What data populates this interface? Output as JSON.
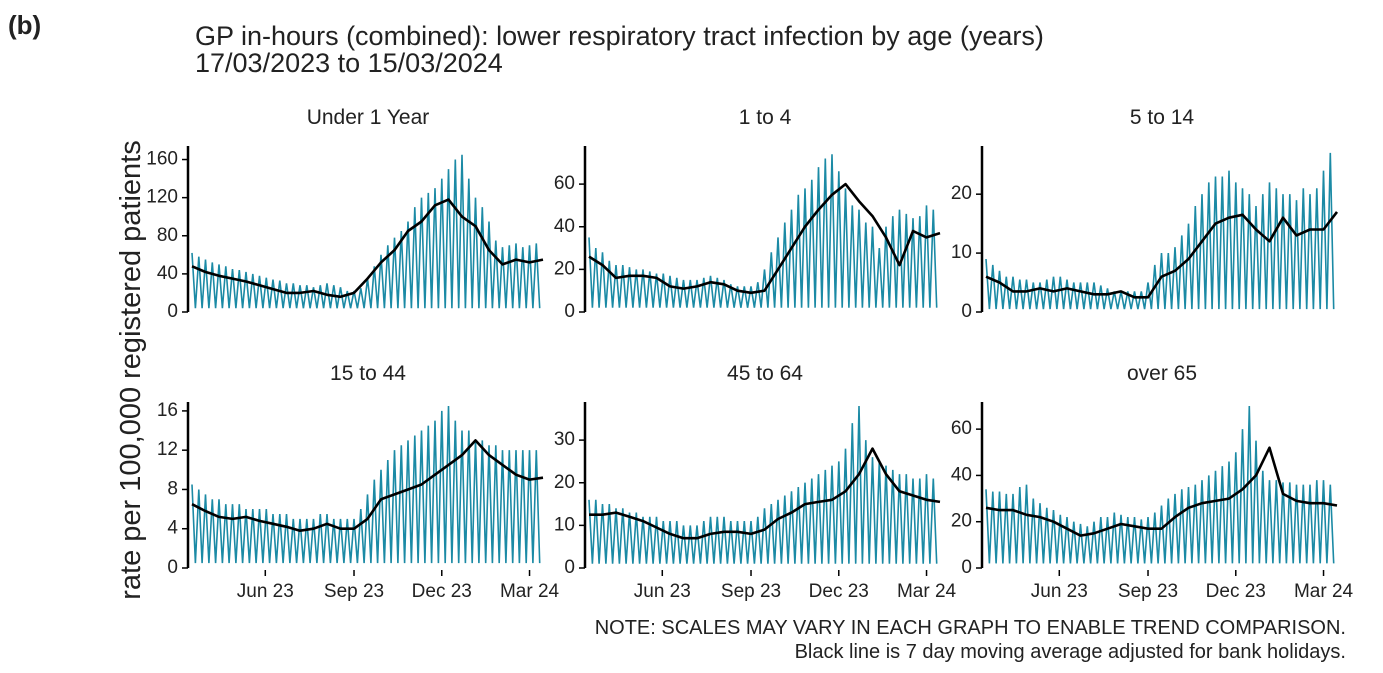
{
  "panel_label": "(b)",
  "title": "GP in-hours (combined): lower respiratory tract infection by age (years)",
  "subtitle": "17/03/2023 to 15/03/2024",
  "ylabel": "rate per 100,000 registered patients",
  "notes": [
    "NOTE: SCALES MAY VARY IN EACH GRAPH TO ENABLE TREND COMPARISON.",
    "Black line is 7 day moving average adjusted for bank holidays."
  ],
  "chart_data": {
    "type": "line",
    "color": "#1b8aa5",
    "avg_color": "#000000",
    "xlim": [
      0,
      365
    ],
    "xticks": [
      {
        "value": 76,
        "label": "Jun 23"
      },
      {
        "value": 168,
        "label": "Sep 23"
      },
      {
        "value": 259,
        "label": "Dec 23"
      },
      {
        "value": 350,
        "label": "Mar 24"
      }
    ],
    "x": [
      0,
      3.5,
      7,
      10.5,
      14,
      17.5,
      21,
      24.5,
      28,
      31.5,
      35,
      38.5,
      42,
      45.5,
      49,
      52.5,
      56,
      59.5,
      63,
      66.5,
      70,
      73.5,
      77,
      80.5,
      84,
      87.5,
      91,
      94.5,
      98,
      101.5,
      105,
      108.5,
      112,
      115.5,
      119,
      122.5,
      126,
      129.5,
      133,
      136.5,
      140,
      143.5,
      147,
      150.5,
      154,
      157.5,
      161,
      164.5,
      168,
      171.5,
      175,
      178.5,
      182,
      185.5,
      189,
      192.5,
      196,
      199.5,
      203,
      206.5,
      210,
      213.5,
      217,
      220.5,
      224,
      227.5,
      231,
      234.5,
      238,
      241.5,
      245,
      248.5,
      252,
      255.5,
      259,
      262.5,
      266,
      269.5,
      273,
      276.5,
      280,
      283.5,
      287,
      290.5,
      294,
      297.5,
      301,
      304.5,
      308,
      311.5,
      315,
      318.5,
      322,
      325.5,
      329,
      332.5,
      336,
      339.5,
      343,
      346.5,
      350,
      353.5,
      357,
      360.5
    ],
    "x_avg": [
      0,
      14,
      28,
      42,
      56,
      70,
      84,
      98,
      112,
      126,
      140,
      154,
      168,
      182,
      196,
      210,
      224,
      238,
      252,
      266,
      280,
      294,
      308,
      322,
      336,
      350,
      364
    ],
    "panels": [
      {
        "title": "Under 1 Year",
        "ylim": [
          0,
          170
        ],
        "yticks": [
          0,
          40,
          80,
          120,
          160
        ],
        "values": [
          62,
          4,
          58,
          4,
          55,
          4,
          52,
          4,
          50,
          4,
          48,
          4,
          45,
          4,
          44,
          4,
          42,
          4,
          40,
          4,
          38,
          4,
          36,
          4,
          34,
          4,
          33,
          4,
          30,
          4,
          30,
          4,
          28,
          4,
          28,
          4,
          26,
          4,
          28,
          4,
          30,
          4,
          28,
          4,
          26,
          4,
          22,
          4,
          22,
          4,
          25,
          4,
          35,
          4,
          48,
          4,
          60,
          4,
          70,
          4,
          78,
          4,
          85,
          4,
          95,
          4,
          110,
          4,
          120,
          4,
          125,
          4,
          130,
          4,
          140,
          4,
          150,
          4,
          160,
          4,
          165,
          4,
          140,
          4,
          120,
          4,
          110,
          4,
          95,
          4,
          75,
          4,
          68,
          4,
          70,
          4,
          72,
          4,
          68,
          4,
          70,
          4,
          72,
          4
        ],
        "average": [
          48,
          42,
          38,
          35,
          32,
          28,
          24,
          20,
          20,
          22,
          18,
          16,
          20,
          35,
          52,
          65,
          85,
          95,
          112,
          118,
          100,
          90,
          65,
          50,
          55,
          52,
          55
        ]
      },
      {
        "title": "1 to 4",
        "ylim": [
          0,
          76
        ],
        "yticks": [
          0,
          20,
          40,
          60
        ],
        "values": [
          35,
          2,
          30,
          2,
          28,
          2,
          24,
          2,
          22,
          2,
          22,
          2,
          21,
          2,
          20,
          2,
          20,
          2,
          19,
          2,
          18,
          2,
          18,
          2,
          17,
          2,
          16,
          2,
          15,
          2,
          15,
          2,
          15,
          2,
          16,
          2,
          17,
          2,
          16,
          2,
          15,
          2,
          13,
          2,
          12,
          2,
          12,
          2,
          12,
          2,
          14,
          2,
          20,
          2,
          28,
          2,
          35,
          2,
          42,
          2,
          48,
          2,
          55,
          2,
          58,
          2,
          62,
          2,
          68,
          2,
          72,
          2,
          74,
          2,
          66,
          2,
          58,
          2,
          50,
          2,
          48,
          2,
          42,
          2,
          40,
          2,
          30,
          2,
          40,
          2,
          45,
          2,
          48,
          2,
          46,
          2,
          44,
          2,
          45,
          2,
          50,
          2,
          48,
          2
        ],
        "average": [
          26,
          22,
          16,
          17,
          17,
          16,
          12,
          11,
          12,
          14,
          13,
          10,
          9,
          10,
          20,
          30,
          40,
          48,
          55,
          60,
          52,
          45,
          35,
          22,
          38,
          35,
          37
        ]
      },
      {
        "title": "5 to 14",
        "ylim": [
          0,
          27.5
        ],
        "yticks": [
          0,
          10,
          20
        ],
        "values": [
          9,
          0.5,
          8,
          0.5,
          7,
          0.5,
          6,
          0.5,
          6,
          0.5,
          5.5,
          0.5,
          5.5,
          0.5,
          5,
          0.5,
          5,
          0.5,
          5.5,
          0.5,
          6,
          0.5,
          6,
          0.5,
          5.5,
          0.5,
          5,
          0.5,
          5,
          0.5,
          5,
          0.5,
          5,
          0.5,
          4.5,
          0.5,
          4,
          0.5,
          3.5,
          0.5,
          3.5,
          0.5,
          3.5,
          0.5,
          3.5,
          0.5,
          3.5,
          0.5,
          5,
          0.5,
          8,
          0.5,
          10,
          0.5,
          10,
          0.5,
          11,
          0.5,
          13,
          0.5,
          15,
          0.5,
          18,
          0.5,
          20,
          0.5,
          22,
          0.5,
          23,
          0.5,
          23,
          0.5,
          24,
          0.5,
          22,
          0.5,
          21,
          0.5,
          20,
          0.5,
          18,
          0.5,
          20,
          0.5,
          22,
          0.5,
          21,
          0.5,
          20,
          0.5,
          20,
          0.5,
          19,
          0.5,
          21,
          0.5,
          20,
          0.5,
          21,
          0.5,
          24,
          0.5,
          27,
          0.5
        ],
        "average": [
          6,
          5,
          3.5,
          3.5,
          4,
          3.5,
          4,
          3.5,
          3,
          3,
          3.5,
          2.5,
          2.5,
          6,
          7,
          9,
          12,
          15,
          16,
          16.5,
          14,
          12,
          16,
          13,
          14,
          14,
          17
        ]
      },
      {
        "title": "15 to 44",
        "ylim": [
          0,
          16.5
        ],
        "yticks": [
          0,
          4,
          8,
          12,
          16
        ],
        "values": [
          8.5,
          0.5,
          8,
          0.5,
          7.5,
          0.5,
          7,
          0.5,
          7,
          0.5,
          6.5,
          0.5,
          6.5,
          0.5,
          6.5,
          0.5,
          6,
          0.5,
          6,
          0.5,
          6,
          0.5,
          6,
          0.5,
          5.5,
          0.5,
          5.5,
          0.5,
          5.5,
          0.5,
          5,
          0.5,
          5,
          0.5,
          5,
          0.5,
          5,
          0.5,
          5.5,
          0.5,
          5.5,
          0.5,
          5,
          0.5,
          5,
          0.5,
          5,
          0.5,
          5,
          0.5,
          6,
          0.5,
          7.5,
          0.5,
          9,
          0.5,
          10,
          0.5,
          11,
          0.5,
          12,
          0.5,
          12.5,
          0.5,
          13,
          0.5,
          13.5,
          0.5,
          14,
          0.5,
          14.5,
          0.5,
          15,
          0.5,
          16,
          0.5,
          16.5,
          0.5,
          15,
          0.5,
          14,
          0.5,
          14,
          0.5,
          13,
          0.5,
          13,
          0.5,
          12.5,
          0.5,
          12.5,
          0.5,
          12,
          0.5,
          12,
          0.5,
          12,
          0.5,
          12,
          0.5,
          12,
          0.5,
          12,
          0.5
        ],
        "average": [
          6.5,
          5.8,
          5.2,
          5,
          5.2,
          4.8,
          4.5,
          4.2,
          3.8,
          4,
          4.5,
          4,
          4,
          5,
          7,
          7.5,
          8,
          8.5,
          9.5,
          10.5,
          11.5,
          13,
          11.5,
          10.5,
          9.5,
          9,
          9.2
        ]
      },
      {
        "title": "45 to 64",
        "ylim": [
          0,
          38
        ],
        "yticks": [
          0,
          10,
          20,
          30
        ],
        "values": [
          16,
          1,
          16,
          1,
          15,
          1,
          15,
          1,
          14,
          1,
          14,
          1,
          13,
          1,
          13,
          1,
          12,
          1,
          12,
          1,
          12,
          1,
          11,
          1,
          11,
          1,
          11,
          1,
          10,
          1,
          10,
          1,
          10,
          1,
          11,
          1,
          12,
          1,
          12,
          1,
          12,
          1,
          11,
          1,
          11,
          1,
          11,
          1,
          11,
          1,
          12,
          1,
          14,
          1,
          15,
          1,
          16,
          1,
          17,
          1,
          18,
          1,
          19,
          1,
          20,
          1,
          21,
          1,
          22,
          1,
          23,
          1,
          24,
          1,
          25,
          1,
          28,
          1,
          34,
          1,
          38,
          1,
          30,
          1,
          26,
          1,
          25,
          1,
          24,
          1,
          23,
          1,
          22,
          1,
          22,
          1,
          21,
          1,
          21,
          1,
          22,
          1,
          21,
          1
        ],
        "average": [
          12.5,
          12.5,
          13,
          12,
          11,
          9.5,
          8,
          7,
          7,
          8,
          8.5,
          8.5,
          8,
          9,
          11.5,
          13,
          15,
          15.5,
          16,
          18,
          22,
          28,
          22,
          18,
          17,
          16,
          15.5
        ]
      },
      {
        "title": "over 65",
        "ylim": [
          0,
          70
        ],
        "yticks": [
          0,
          20,
          40,
          60
        ],
        "values": [
          34,
          2,
          33,
          2,
          33,
          2,
          32,
          2,
          32,
          2,
          35,
          2,
          36,
          2,
          30,
          2,
          28,
          2,
          26,
          2,
          25,
          2,
          23,
          2,
          22,
          2,
          20,
          2,
          19,
          2,
          18,
          2,
          20,
          2,
          22,
          2,
          22,
          2,
          24,
          2,
          23,
          2,
          22,
          2,
          22,
          2,
          21,
          2,
          22,
          2,
          24,
          2,
          27,
          2,
          30,
          2,
          32,
          2,
          34,
          2,
          35,
          2,
          36,
          2,
          38,
          2,
          40,
          2,
          42,
          2,
          44,
          2,
          46,
          2,
          50,
          2,
          60,
          2,
          70,
          2,
          55,
          2,
          42,
          2,
          38,
          2,
          38,
          2,
          37,
          2,
          37,
          2,
          36,
          2,
          36,
          2,
          36,
          2,
          38,
          2,
          38,
          2,
          36,
          2
        ],
        "average": [
          26,
          25,
          25,
          23,
          22,
          20,
          17,
          14,
          15,
          17,
          19,
          18,
          17,
          17,
          22,
          26,
          28,
          29,
          30,
          34,
          40,
          52,
          32,
          29,
          28,
          28,
          27
        ]
      }
    ]
  }
}
